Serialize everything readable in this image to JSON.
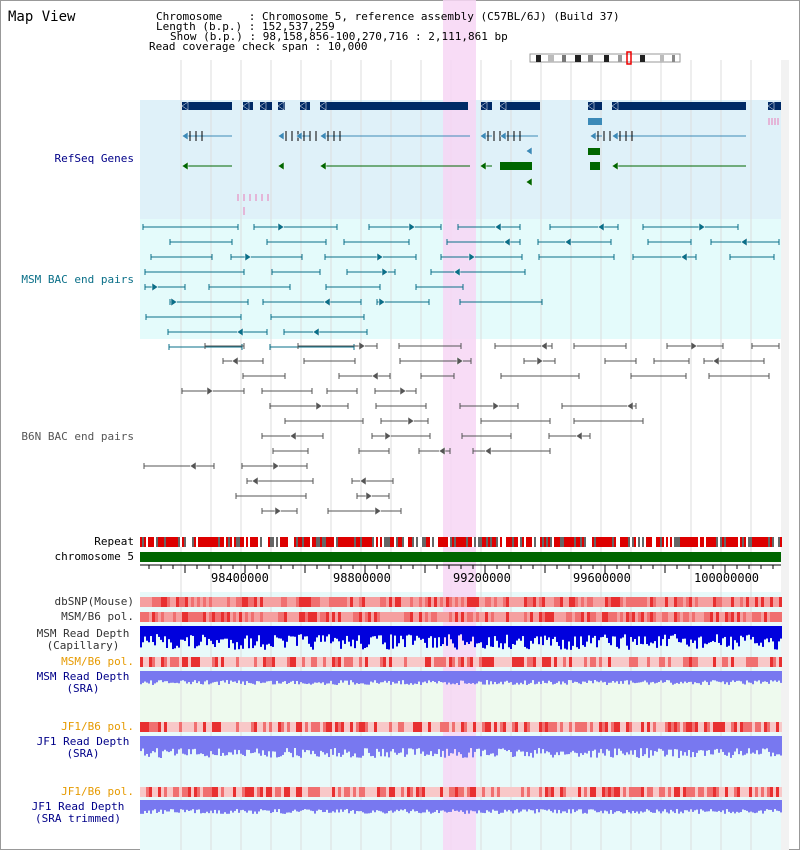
{
  "map_title": "Map View",
  "header": {
    "chromosome_line": "Chromosome    : Chromosome 5, reference assembly (C57BL/6J) (Build 37)",
    "length_line": "Length (b.p.) : 152,537,259",
    "show_line": "Show (b.p.) : 98,158,856-100,270,716 : 2,111,861 bp",
    "span_line": "Read coverage check span : 10,000"
  },
  "tracks": {
    "refseq": "RefSeq Genes",
    "msm_bac": "MSM BAC end pairs",
    "b6n_bac": "B6N BAC end pairs",
    "repeat": "Repeat",
    "chromosome": "chromosome 5",
    "dbsnp": "dbSNP(Mouse)",
    "msm_b6_pol_1": "MSM/B6 pol.",
    "msm_depth_cap_1": "MSM Read Depth",
    "msm_depth_cap_2": "(Capillary)",
    "msm_b6_pol_2": "MSM/B6 pol.",
    "msm_depth_sra_1": "MSM Read Depth",
    "msm_depth_sra_2": "(SRA)",
    "jf1_b6_pol_1": "JF1/B6 pol.",
    "jf1_depth_sra_1": "JF1 Read Depth",
    "jf1_depth_sra_2": "(SRA)",
    "jf1_b6_pol_2": "JF1/B6 pol.",
    "jf1_depth_trim_1": "JF1 Read Depth",
    "jf1_depth_trim_2": "(SRA trimmed)"
  },
  "axis": {
    "ticks": [
      "98400000",
      "98800000",
      "99200000",
      "99600000",
      "100000000"
    ]
  },
  "colors": {
    "refseq_bg": "#dff1f9",
    "msm_bg": "#e4fbfb",
    "gene_dark": "#002a66",
    "gene_light": "#3c8ab8",
    "gene_green": "#006600",
    "msm_pair": "#0a6f88",
    "b6n_pair": "#555555",
    "highlight": "#f7d6f5",
    "label_blue": "#000088",
    "label_orange": "#e69a00",
    "label_grey": "#333333",
    "repeat_red": "#dd0000",
    "chrom_green": "#006600",
    "depth_blue": "#0000dd",
    "depth_light_blue": "#7878f0"
  }
}
